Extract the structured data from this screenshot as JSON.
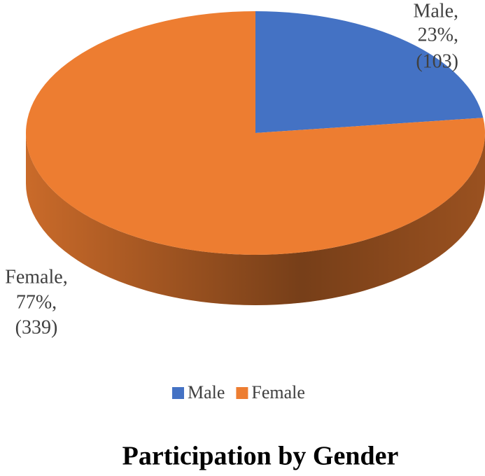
{
  "chart_data": {
    "type": "pie",
    "title": "Participation by Gender",
    "categories": [
      "Male",
      "Female"
    ],
    "values": [
      23,
      77
    ],
    "counts": [
      103,
      339
    ],
    "label_names": [
      "Male,",
      "Female,"
    ],
    "value_labels": [
      "23%,",
      "77%,"
    ],
    "count_labels": [
      "(103)",
      "(339)"
    ],
    "colors": [
      "#4472c4",
      "#ed7d31"
    ]
  }
}
